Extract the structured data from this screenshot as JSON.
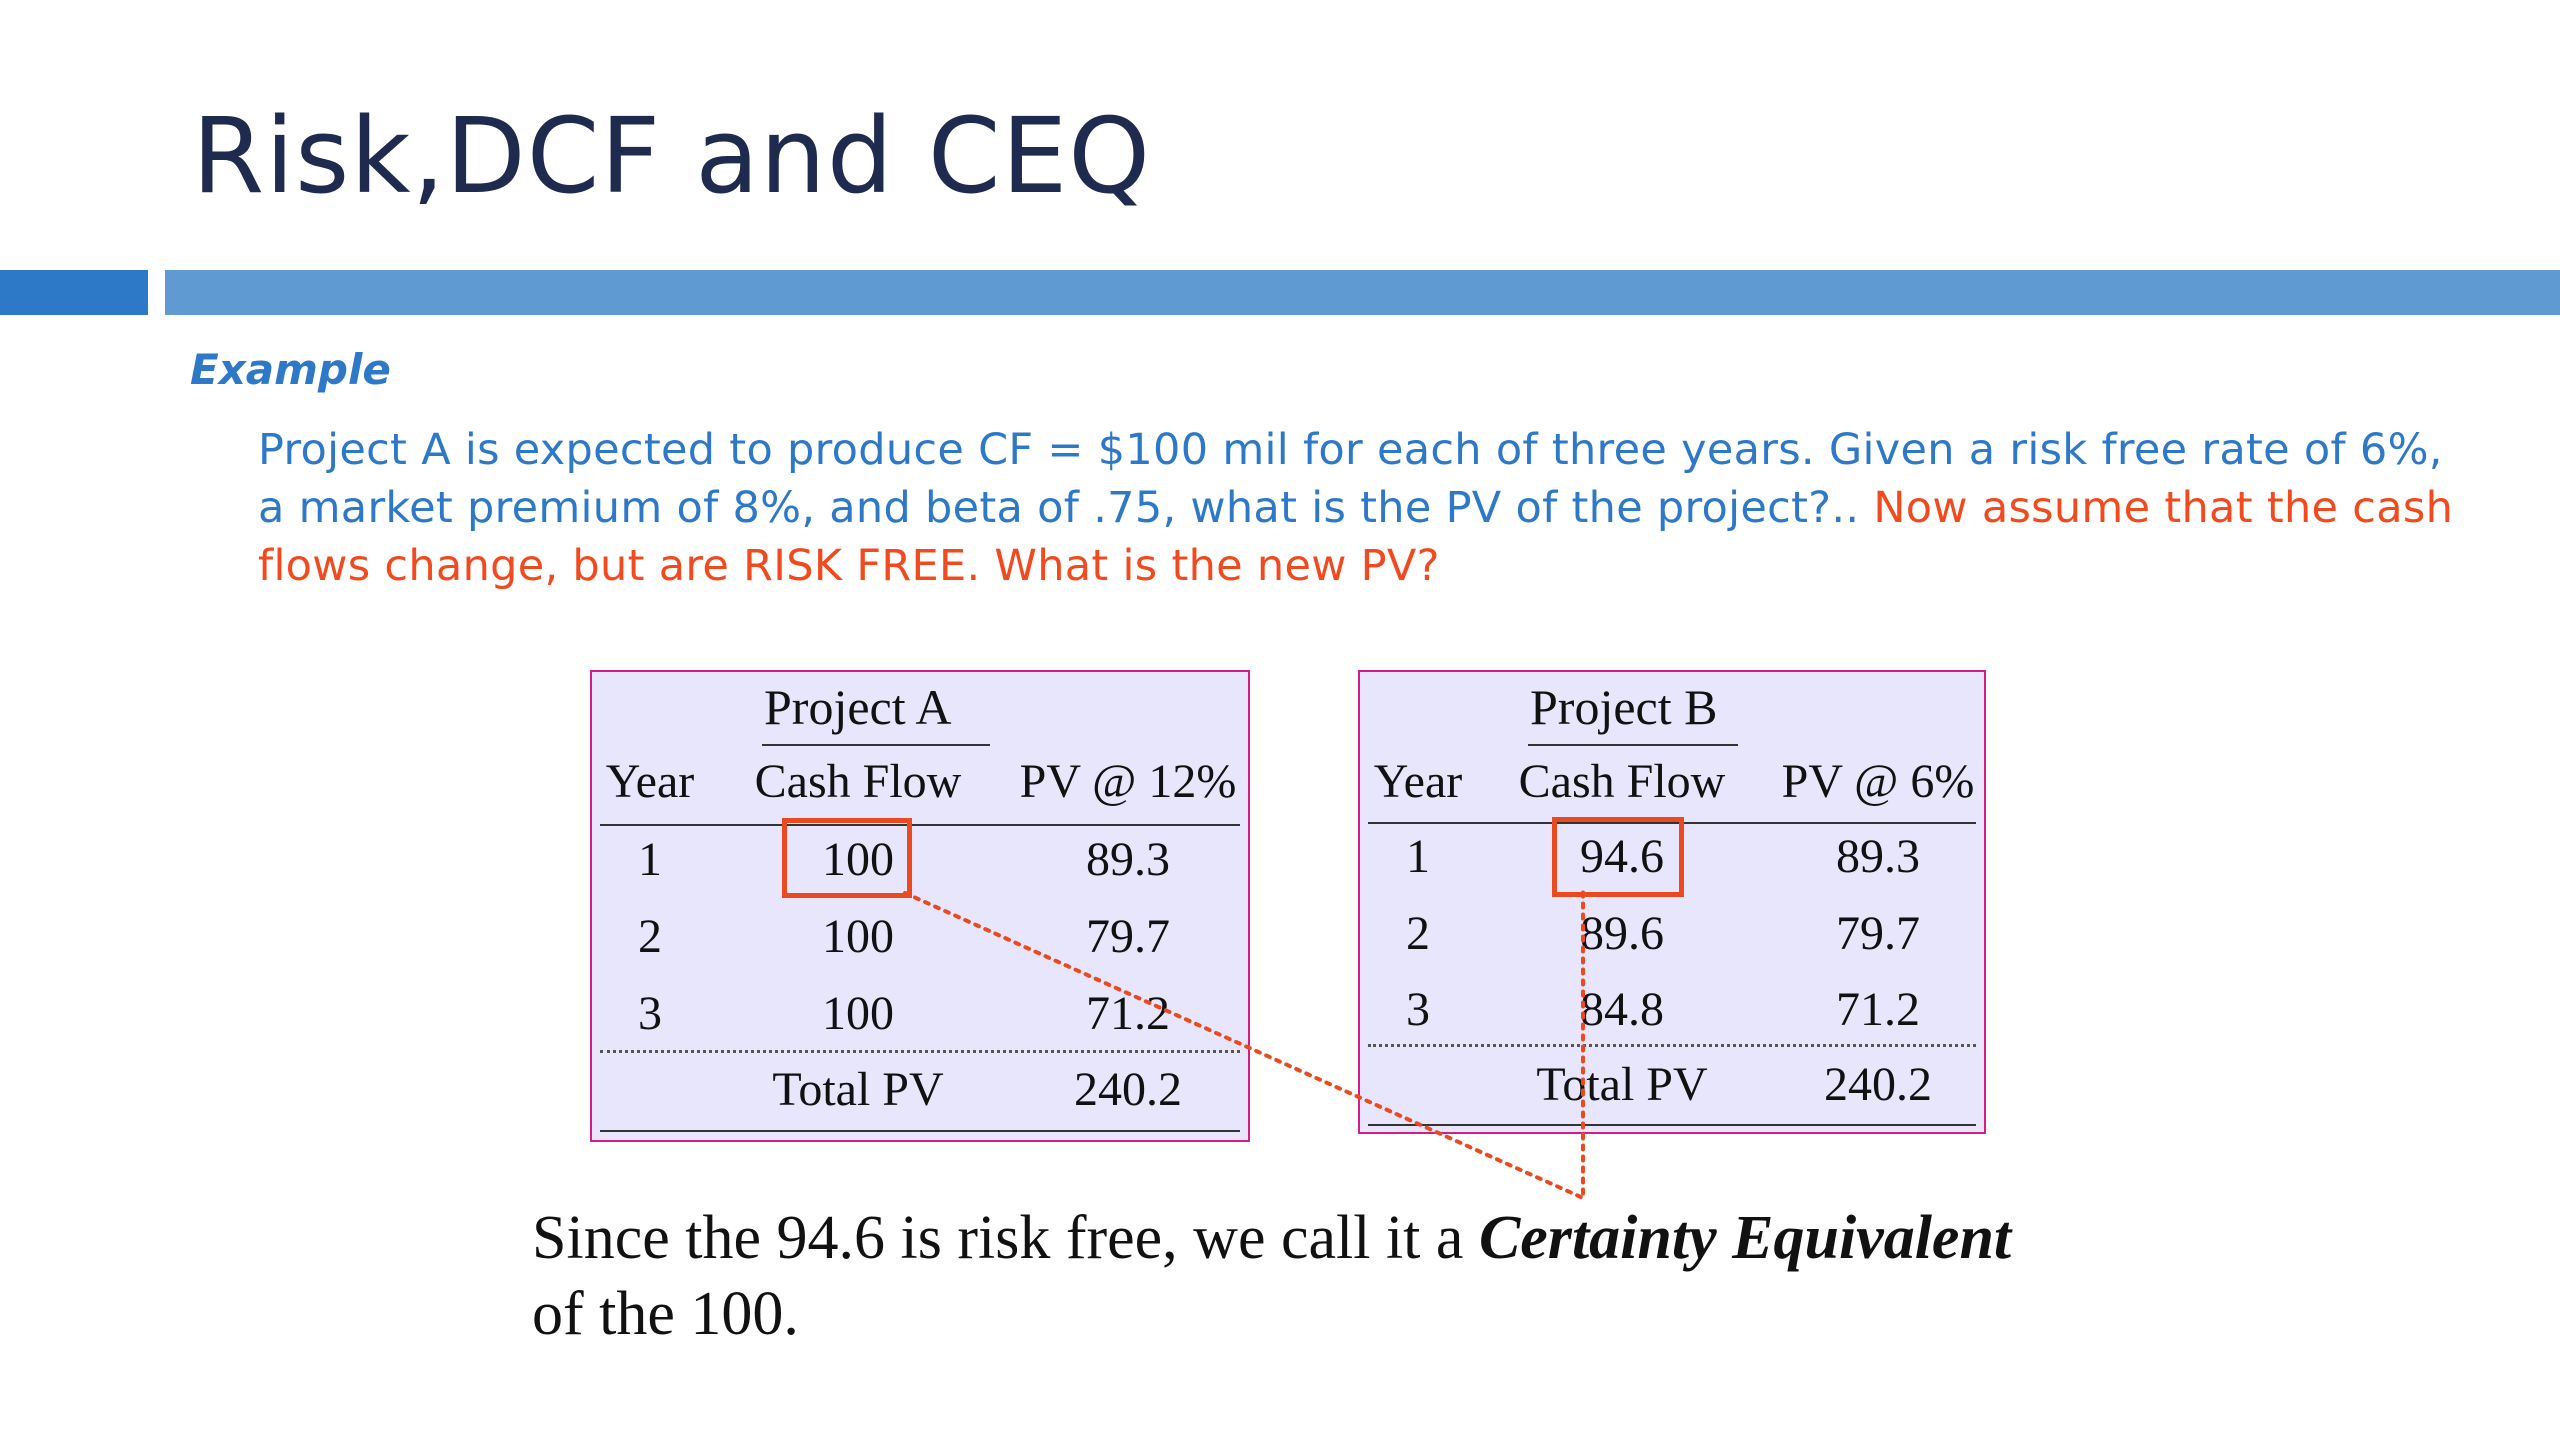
{
  "slide": {
    "title": "Risk,DCF and CEQ",
    "example_label": "Example",
    "problem_blue_1": "Project A is expected to produce CF = $100 mil for each of three years. Given a risk free rate of 6%,",
    "problem_blue_2": "a market premium of 8%, and beta of .75, what is the PV of the project?.. ",
    "problem_red_2": "Now assume that the cash",
    "problem_red_3": "flows change, but are RISK FREE.  What is the new PV?",
    "caption_part1": "Since the 94.6 is risk free, we call it a ",
    "caption_emph": "Certainty Equivalent",
    "caption_part2": "of the 100.",
    "colors": {
      "title": "#1f2a4f",
      "accent_blue": "#2e78c8",
      "accent_red": "#f04a1e",
      "table_bg": "#e7e6fd",
      "table_border": "#d31c88",
      "highlight": "#ea4a20"
    }
  },
  "project_a": {
    "title": "Project  A",
    "headers": [
      "Year",
      "Cash Flow",
      "PV @ 12%"
    ],
    "rows": [
      [
        "1",
        "100",
        "89.3"
      ],
      [
        "2",
        "100",
        "79.7"
      ],
      [
        "3",
        "100",
        "71.2"
      ]
    ],
    "total_label": "Total PV",
    "total_value": "240.2"
  },
  "project_b": {
    "title": "Project B",
    "headers": [
      "Year",
      "Cash Flow",
      "PV @ 6%"
    ],
    "rows": [
      [
        "1",
        "94.6",
        "89.3"
      ],
      [
        "2",
        "89.6",
        "79.7"
      ],
      [
        "3",
        "84.8",
        "71.2"
      ]
    ],
    "total_label": "Total PV",
    "total_value": "240.2"
  }
}
